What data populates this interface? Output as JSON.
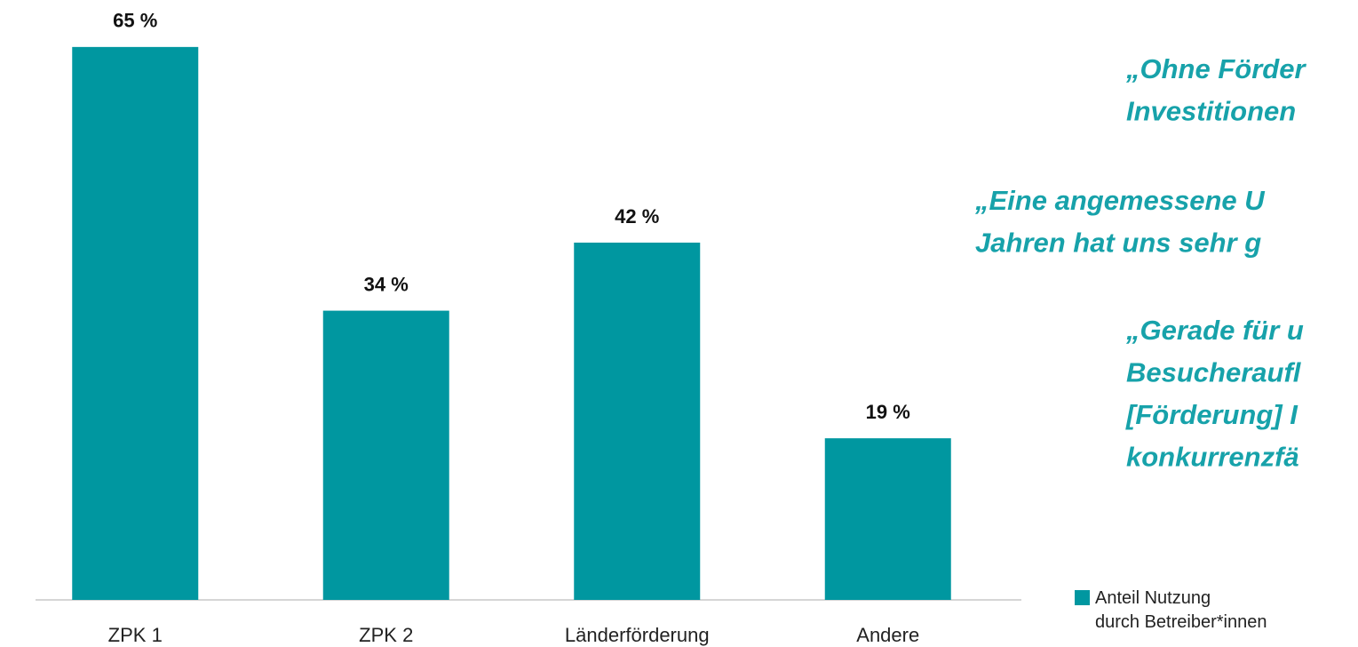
{
  "chart_data": {
    "type": "bar",
    "categories": [
      "ZPK 1",
      "ZPK 2",
      "Länderförderung",
      "Andere"
    ],
    "series": [
      {
        "name": "Anteil Nutzung\ndurch Betreiber*innen",
        "color": "#0097a0",
        "values": [
          65,
          34,
          42,
          19
        ],
        "value_labels": [
          "65 %",
          "34 %",
          "42 %",
          "19 %"
        ]
      }
    ],
    "ylim": [
      0,
      70
    ],
    "annotations": [
      [
        "„Ohne Förder",
        "Investitionen"
      ],
      [
        "„Eine angemessene U",
        "Jahren hat uns sehr g"
      ],
      [
        "„Gerade für u",
        "Besucheraufl",
        "[Förderung] I",
        "konkurrenzfä"
      ]
    ]
  }
}
